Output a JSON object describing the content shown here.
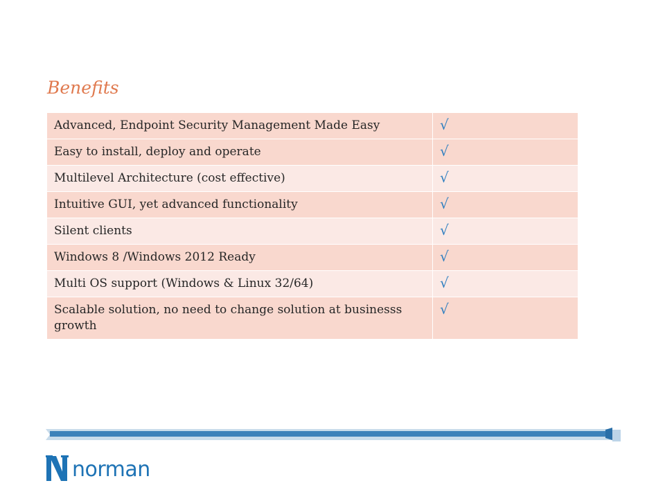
{
  "slide": {
    "title": "Benefits",
    "rows": [
      {
        "feature": "Advanced, Endpoint Security Management Made Easy",
        "check": "√"
      },
      {
        "feature": "Easy to install, deploy and operate",
        "check": "√"
      },
      {
        "feature": "Multilevel Architecture (cost effective)",
        "check": "√"
      },
      {
        "feature": "Intuitive GUI, yet advanced functionality",
        "check": "√"
      },
      {
        "feature": "Silent clients",
        "check": "√"
      },
      {
        "feature": "Windows 8 /Windows 2012 Ready",
        "check": "√"
      },
      {
        "feature": "Multi OS support (Windows & Linux 32/64)",
        "check": "√"
      },
      {
        "feature": "Scalable solution, no need to change solution at businesss growth",
        "check": "√"
      }
    ]
  },
  "brand": {
    "logo_text": "norman",
    "logo_icon": "norman-n-logo-icon",
    "colors": {
      "accent": "#e07a4f",
      "row_dark": "#f9d8ce",
      "row_light": "#fbe9e5",
      "brand_blue": "#1e73b5",
      "check": "#2f7fc0"
    }
  }
}
